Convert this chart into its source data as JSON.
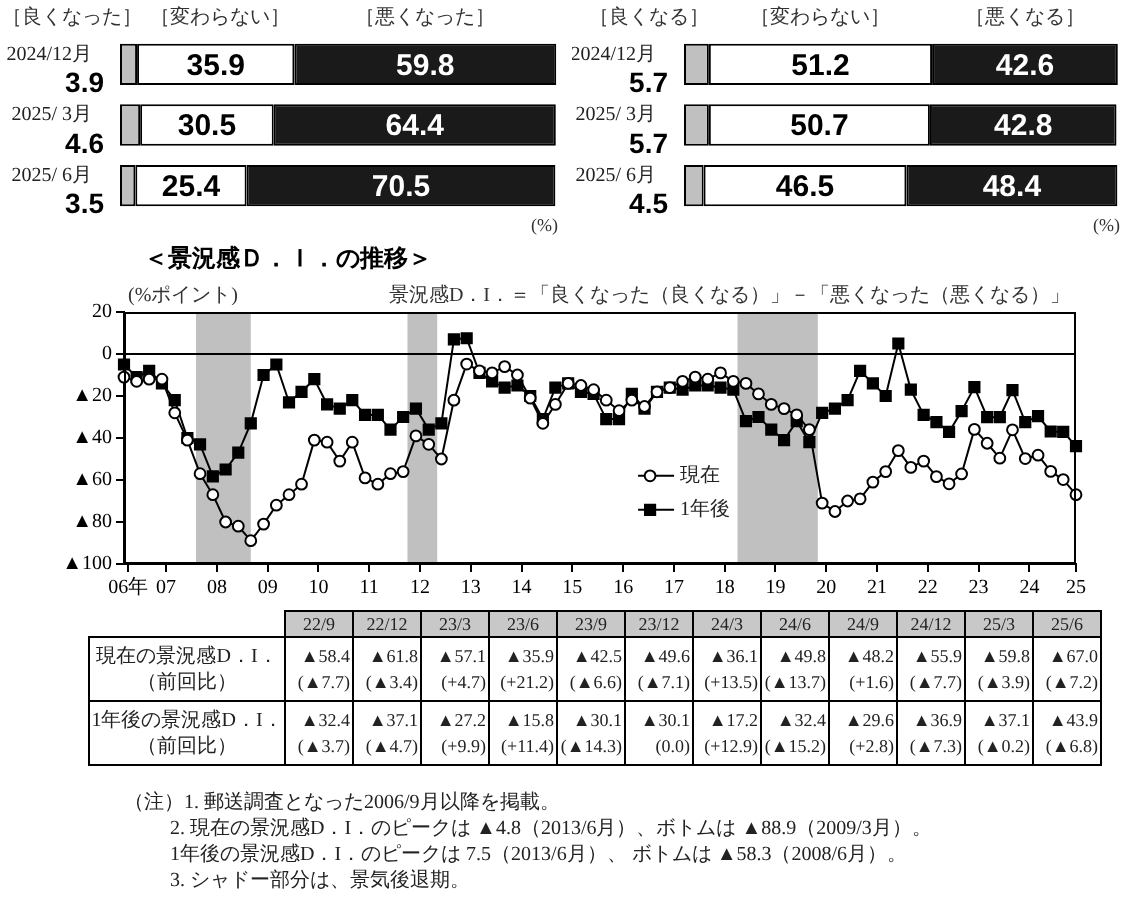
{
  "chart_data": [
    {
      "type": "bar",
      "orientation": "horizontal",
      "stacked": true,
      "tick_labels": "y",
      "data_labels": true,
      "categories": [
        "2024/12月",
        "2025/ 3月",
        "2025/ 6月"
      ],
      "series": [
        {
          "name": "［良くなった］",
          "color": "#c0c0c0",
          "values": [
            3.9,
            4.6,
            3.5
          ]
        },
        {
          "name": "［変わらない］",
          "color": "#ffffff",
          "values": [
            35.9,
            30.5,
            25.4
          ]
        },
        {
          "name": "［悪くなった］",
          "color": "#1a1a1a",
          "values": [
            59.8,
            64.4,
            70.5
          ]
        }
      ],
      "annotations": [
        "(%)"
      ]
    },
    {
      "type": "bar",
      "orientation": "horizontal",
      "stacked": true,
      "tick_labels": "y",
      "data_labels": true,
      "categories": [
        "2024/12月",
        "2025/ 3月",
        "2025/ 6月"
      ],
      "series": [
        {
          "name": "［良くなる］",
          "color": "#c0c0c0",
          "values": [
            5.7,
            5.7,
            4.5
          ]
        },
        {
          "name": "［変わらない］",
          "color": "#ffffff",
          "values": [
            51.2,
            50.7,
            46.5
          ]
        },
        {
          "name": "［悪くなる］",
          "color": "#1a1a1a",
          "values": [
            42.6,
            42.8,
            48.4
          ]
        }
      ],
      "annotations": [
        "(%)"
      ]
    },
    {
      "type": "line",
      "title": "＜景況感Ｄ．Ｉ．の推移＞",
      "ylabel": "(%ポイント)",
      "annotations": [
        "景況感D．I．＝「良くなった（良くなる）」－「悪くなった（悪くなる）」"
      ],
      "x": [
        "2006-09",
        "2006-12",
        "2007-03",
        "2007-06",
        "2007-09",
        "2007-12",
        "2008-03",
        "2008-06",
        "2008-09",
        "2008-12",
        "2009-03",
        "2009-06",
        "2009-09",
        "2009-12",
        "2010-03",
        "2010-06",
        "2010-09",
        "2010-12",
        "2011-03",
        "2011-06",
        "2011-09",
        "2011-12",
        "2012-03",
        "2012-06",
        "2012-09",
        "2012-12",
        "2013-03",
        "2013-06",
        "2013-09",
        "2013-12",
        "2014-03",
        "2014-06",
        "2014-09",
        "2014-12",
        "2015-03",
        "2015-06",
        "2015-09",
        "2015-12",
        "2016-03",
        "2016-06",
        "2016-09",
        "2016-12",
        "2017-03",
        "2017-06",
        "2017-09",
        "2017-12",
        "2018-03",
        "2018-06",
        "2018-09",
        "2018-12",
        "2019-03",
        "2019-06",
        "2019-09",
        "2019-12",
        "2020-03",
        "2020-06",
        "2020-09",
        "2020-12",
        "2021-03",
        "2021-06",
        "2021-09",
        "2021-12",
        "2022-03",
        "2022-06",
        "2022-09",
        "2022-12",
        "2023-03",
        "2023-06",
        "2023-09",
        "2023-12",
        "2024-03",
        "2024-06",
        "2024-09",
        "2024-12",
        "2025-03",
        "2025-06"
      ],
      "xlim": [
        "2006-09",
        "2025-06"
      ],
      "xticks": [
        {
          "value": "2006-10",
          "label": "06年"
        },
        {
          "value": "2007-07",
          "label": "07"
        },
        {
          "value": "2008-07",
          "label": "08"
        },
        {
          "value": "2009-07",
          "label": "09"
        },
        {
          "value": "2010-07",
          "label": "10"
        },
        {
          "value": "2011-07",
          "label": "11"
        },
        {
          "value": "2012-07",
          "label": "12"
        },
        {
          "value": "2013-07",
          "label": "13"
        },
        {
          "value": "2014-07",
          "label": "14"
        },
        {
          "value": "2015-07",
          "label": "15"
        },
        {
          "value": "2016-07",
          "label": "16"
        },
        {
          "value": "2017-07",
          "label": "17"
        },
        {
          "value": "2018-07",
          "label": "18"
        },
        {
          "value": "2019-07",
          "label": "19"
        },
        {
          "value": "2020-07",
          "label": "20"
        },
        {
          "value": "2021-07",
          "label": "21"
        },
        {
          "value": "2022-07",
          "label": "22"
        },
        {
          "value": "2023-07",
          "label": "23"
        },
        {
          "value": "2024-07",
          "label": "24"
        },
        {
          "value": "2025-06",
          "label": "25"
        }
      ],
      "ylim": [
        -100,
        20
      ],
      "yticks": [
        {
          "value": -100,
          "label": "▲100"
        },
        {
          "value": -80,
          "label": "▲80"
        },
        {
          "value": -60,
          "label": "▲60"
        },
        {
          "value": -40,
          "label": "▲40"
        },
        {
          "value": -20,
          "label": "▲20"
        },
        0,
        20
      ],
      "series": [
        {
          "name": "現在",
          "color": "#000000",
          "marker": "circle",
          "values": [
            -11,
            -13,
            -12,
            -12,
            -28,
            -41,
            -57,
            -67,
            -80,
            -82,
            -88.9,
            -81,
            -72,
            -67,
            -62,
            -41,
            -42,
            -51,
            -42,
            -59,
            -62,
            -57,
            -56,
            -39,
            -43,
            -50,
            -22,
            -4.8,
            -8,
            -9,
            -6,
            -10,
            -21,
            -33,
            -24,
            -14,
            -15,
            -17,
            -22,
            -27,
            -22,
            -25,
            -18,
            -16,
            -13,
            -11,
            -12,
            -9,
            -13,
            -14,
            -19,
            -24,
            -26,
            -29,
            -36,
            -71,
            -75,
            -70,
            -69,
            -61,
            -56,
            -46,
            -54,
            -51,
            -58.4,
            -61.8,
            -57.1,
            -35.9,
            -42.5,
            -49.6,
            -36.1,
            -49.8,
            -48.2,
            -55.9,
            -59.8,
            -67.0
          ]
        },
        {
          "name": "1年後",
          "color": "#000000",
          "marker": "square",
          "values": [
            -5,
            -11,
            -8,
            -14,
            -22,
            -40,
            -43,
            -58.3,
            -55,
            -47,
            -33,
            -10,
            -5,
            -23,
            -18,
            -12,
            -24,
            -26,
            -22,
            -29,
            -29,
            -36,
            -30,
            -26,
            -36,
            -33,
            7,
            7.5,
            -9,
            -13,
            -16,
            -15,
            -20,
            -31,
            -16,
            -14,
            -18,
            -19,
            -31,
            -31,
            -19,
            -26,
            -18,
            -16,
            -17,
            -15,
            -15,
            -16,
            -17,
            -32,
            -30,
            -36,
            -41,
            -32,
            -42,
            -28,
            -26,
            -22,
            -8,
            -14,
            -20,
            5,
            -17,
            -29,
            -32.4,
            -37.1,
            -27.2,
            -15.8,
            -30.1,
            -30.1,
            -17.2,
            -32.4,
            -29.6,
            -36.9,
            -37.1,
            -43.9
          ]
        }
      ],
      "ref_lines": [
        {
          "axis": "y",
          "value": 0
        }
      ],
      "bands": [
        {
          "axis": "x",
          "from": "2008-02",
          "to": "2009-03",
          "color": "#c0c0c0"
        },
        {
          "axis": "x",
          "from": "2012-04",
          "to": "2012-11",
          "color": "#c0c0c0"
        },
        {
          "axis": "x",
          "from": "2018-10",
          "to": "2020-05",
          "color": "#c0c0c0"
        }
      ],
      "legend": "bottom"
    },
    {
      "type": "other",
      "categories": [
        "22/9",
        "22/12",
        "23/3",
        "23/6",
        "23/9",
        "23/12",
        "24/3",
        "24/6",
        "24/9",
        "24/12",
        "25/3",
        "25/6"
      ],
      "y_categories": [
        "現在の景況感D．I．（前回比）",
        "1年後の景況感D．I．（前回比）"
      ],
      "cell_labels": [
        [
          "▲58.4\n(▲7.7)",
          "▲61.8\n(▲3.4)",
          "▲57.1\n(+4.7)",
          "▲35.9\n(+21.2)",
          "▲42.5\n(▲6.6)",
          "▲49.6\n(▲7.1)",
          "▲36.1\n(+13.5)",
          "▲49.8\n(▲13.7)",
          "▲48.2\n(+1.6)",
          "▲55.9\n(▲7.7)",
          "▲59.8\n(▲3.9)",
          "▲67.0\n(▲7.2)"
        ],
        [
          "▲32.4\n(▲3.7)",
          "▲37.1\n(▲4.7)",
          "▲27.2\n(+9.9)",
          "▲15.8\n(+11.4)",
          "▲30.1\n(▲14.3)",
          "▲30.1\n(0.0)",
          "▲17.2\n(+12.9)",
          "▲32.4\n(▲15.2)",
          "▲29.6\n(+2.8)",
          "▲36.9\n(▲7.3)",
          "▲37.1\n(▲0.2)",
          "▲43.9\n(▲6.8)"
        ]
      ],
      "annotations": [
        "（注）1. 郵送調査となった2006/9月以降を掲載。",
        "2. 現在の景況感D．I．のピークは ▲4.8（2013/6月）、ボトムは ▲88.9（2009/3月）。",
        "1年後の景況感D．I．のピークは 7.5（2013/6月）、 ボトムは ▲58.3（2008/6月）。",
        "3. シャドー部分は、景気後退期。"
      ]
    }
  ]
}
